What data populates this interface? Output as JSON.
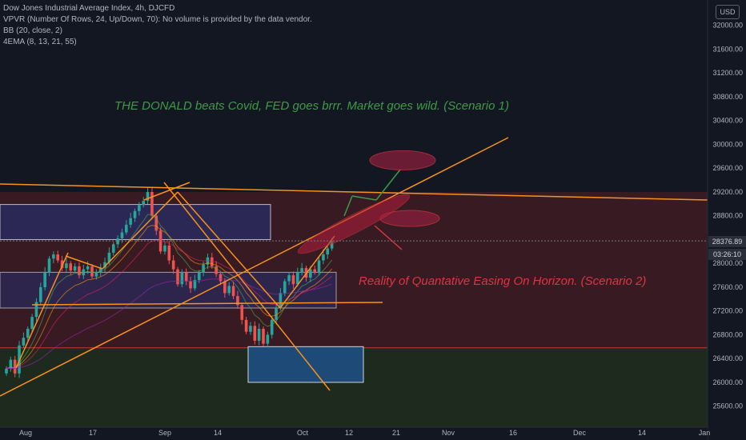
{
  "header": {
    "title": "Dow Jones Industrial Average Index, 4h, DJCFD",
    "indicators": [
      "VPVR (Number Of Rows, 24, Up/Down, 70): No volume is provided by the data vendor.",
      "BB (20, close, 2)",
      "4EMA (8, 13, 21, 55)"
    ]
  },
  "price_axis": {
    "currency": "USD",
    "last_price": "28376.89",
    "countdown": "03:26:10"
  },
  "annotations": {
    "scenario1": "THE DONALD beats Covid, FED goes brrr. Market goes wild. (Scenario 1)",
    "scenario2": "Reality of Quantative Easing On Horizon. (Scenario 2)"
  },
  "colors": {
    "background": "#131722",
    "up_candle": "#26a69a",
    "down_candle": "#ef5350",
    "trendline": "#f7931a",
    "scenario1_text": "#3d9a45",
    "scenario2_text": "#d93743",
    "upper_zone": "#3a1a24",
    "lower_zone": "#1f2a1e",
    "support_box": "#1e4a78",
    "resistance_box": "#2b2b5e"
  },
  "chart_data": {
    "type": "candlestick",
    "title": "Dow Jones Industrial Average Index, 4h, DJCFD",
    "ylim": [
      25300,
      32400
    ],
    "y_ticks": [
      25600,
      26000,
      26400,
      26800,
      27200,
      27600,
      28000,
      28400,
      28800,
      29200,
      29600,
      30000,
      30400,
      30800,
      31200,
      31600,
      32000,
      32400
    ],
    "x_ticks": [
      "Aug",
      "17",
      "Sep",
      "14",
      "Oct",
      "12",
      "21",
      "Nov",
      "16",
      "Dec",
      "14",
      "Jan"
    ],
    "last_price": 28376.89,
    "grid": false,
    "legend": "top-left",
    "closes": [
      26230,
      26380,
      26150,
      26620,
      26750,
      26900,
      27100,
      27350,
      27600,
      27850,
      28080,
      28150,
      28050,
      27920,
      28000,
      27880,
      27950,
      27800,
      27900,
      27950,
      27780,
      27850,
      27930,
      28020,
      28180,
      28320,
      28420,
      28520,
      28650,
      28760,
      28880,
      28980,
      29050,
      29200,
      28800,
      28550,
      28200,
      28300,
      28050,
      27900,
      27650,
      27850,
      27700,
      27580,
      27720,
      27850,
      27980,
      28100,
      27950,
      27820,
      27700,
      27500,
      27620,
      27450,
      27300,
      27050,
      26850,
      26950,
      26700,
      26900,
      26650,
      26800,
      27050,
      27250,
      27500,
      27700,
      27800,
      27650,
      27850,
      27920,
      27760,
      27900,
      27850,
      28050,
      28150,
      28250,
      28376.89
    ],
    "zones": {
      "upper_resistance_top": 29200,
      "lower_support_line": 26580,
      "support_box": [
        26000,
        26600
      ],
      "range_box_high": [
        28400,
        28990
      ],
      "range_box_mid": [
        27250,
        27850
      ]
    },
    "scenario_targets": [
      29800,
      28150
    ]
  }
}
